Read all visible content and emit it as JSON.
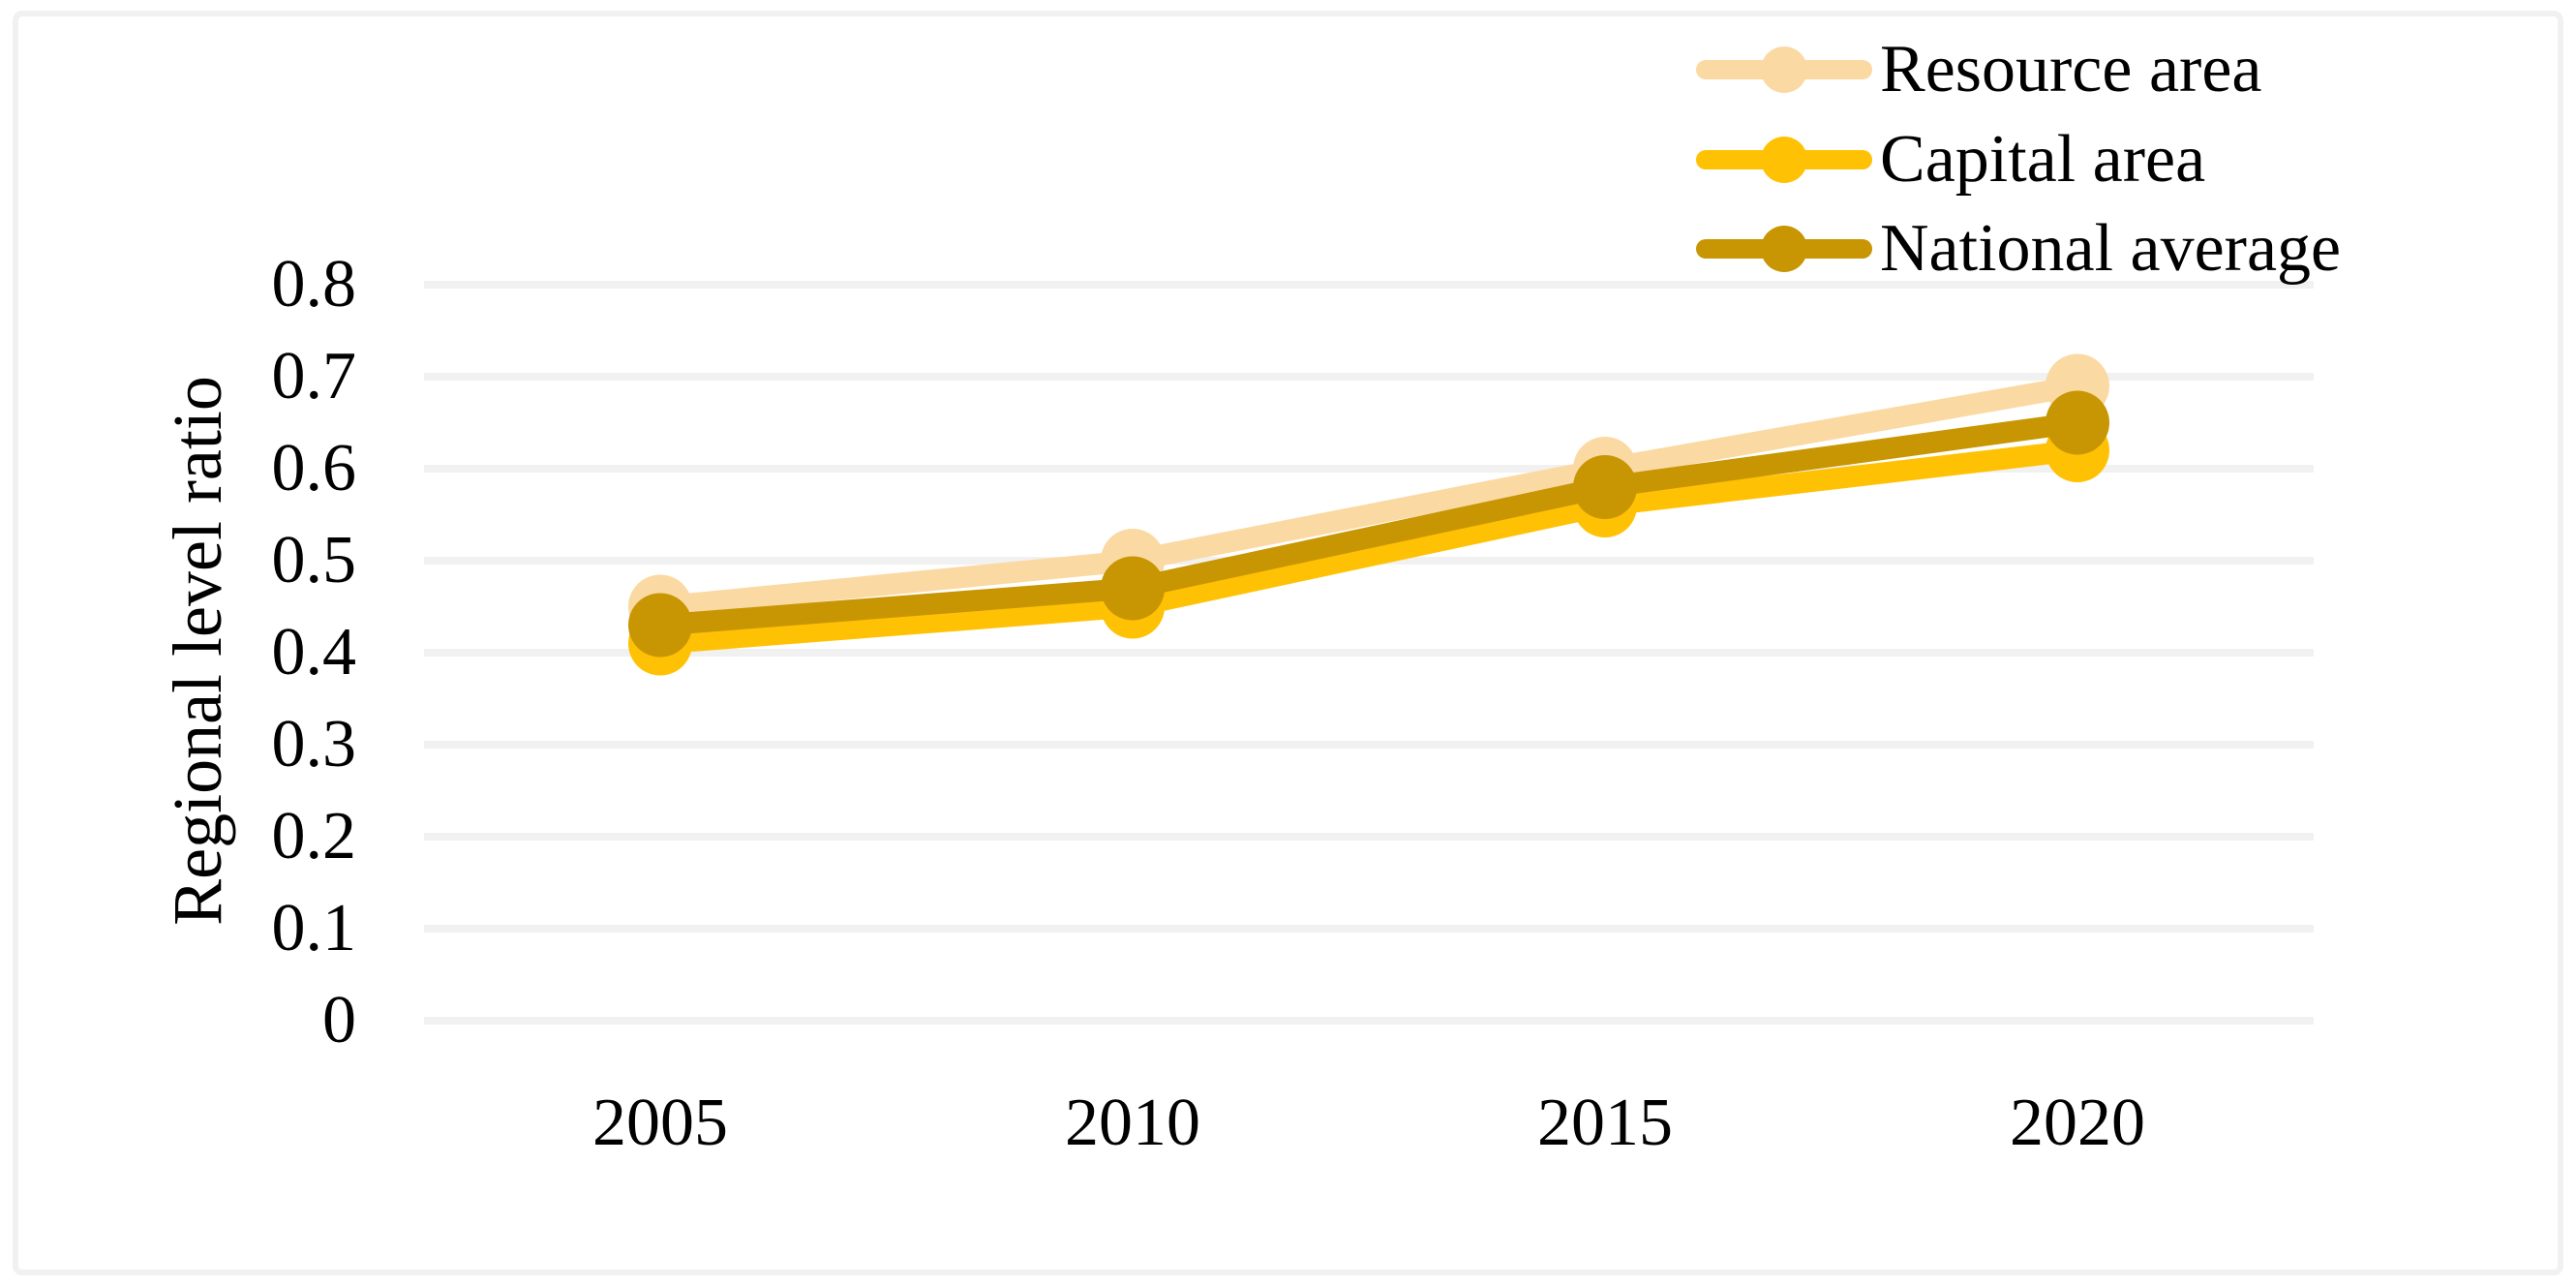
{
  "figure": {
    "background_color": "#FFFFFF",
    "frame_color": "#F1F1F1"
  },
  "chart_data": {
    "type": "line",
    "categories": [
      "2005",
      "2010",
      "2015",
      "2020"
    ],
    "series": [
      {
        "name": "Resource area",
        "color": "#FBD9A3",
        "values": [
          0.45,
          0.5,
          0.6,
          0.69
        ]
      },
      {
        "name": "Capital area",
        "color": "#FFC103",
        "values": [
          0.41,
          0.45,
          0.56,
          0.62
        ]
      },
      {
        "name": "National average",
        "color": "#C89602",
        "values": [
          0.43,
          0.47,
          0.58,
          0.65
        ]
      }
    ],
    "ylabel": "Regional level ratio",
    "yticks": [
      "0.8",
      "0.7",
      "0.6",
      "0.5",
      "0.4",
      "0.3",
      "0.2",
      "0.1",
      "0"
    ],
    "ylim": [
      0,
      0.8
    ],
    "grid": "horizontal",
    "gridline_color": "#F1F1F1",
    "legend_position": "top-right",
    "marker": "circle",
    "text_color": "#000000"
  }
}
